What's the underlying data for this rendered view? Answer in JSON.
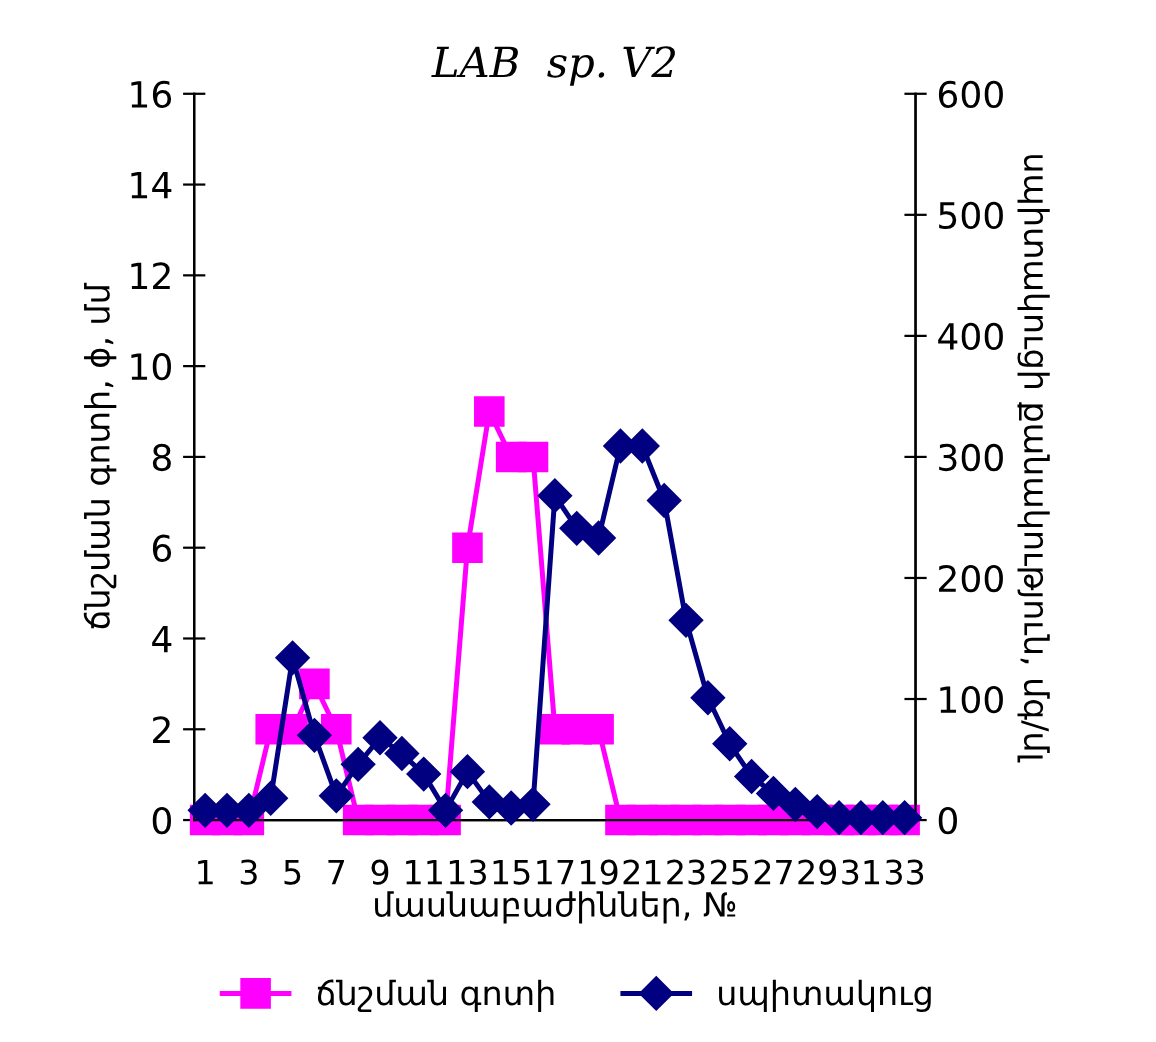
{
  "chart_data": {
    "type": "line",
    "title": "LAB  sp. V2",
    "xlabel": "մասնաբաժիններ, №",
    "ylabel": "ճնշման գոտի, ϕ, մմ",
    "y2label": "սպիտակուցի քանակություն, մգ/մլ",
    "categories": [
      "1",
      null,
      "3",
      null,
      "5",
      null,
      "7",
      null,
      "9",
      null,
      "11",
      null,
      "13",
      null,
      "15",
      null,
      "17",
      null,
      "19",
      null,
      "21",
      null,
      "23",
      null,
      "25",
      null,
      "27",
      null,
      "29",
      null,
      "31",
      null,
      "33"
    ],
    "series": [
      {
        "name": "ճնշման գոտի",
        "color": "#ff00ff",
        "marker": "square",
        "values": [
          0,
          0,
          0,
          2,
          2,
          3,
          2,
          0,
          0,
          0,
          0,
          0,
          6,
          9,
          8,
          8,
          2,
          2,
          2,
          0,
          0,
          0,
          0,
          0,
          0,
          0,
          0,
          0,
          0,
          0,
          0,
          0,
          0
        ]
      },
      {
        "name": "սպիտակուց",
        "color": "#000080",
        "marker": "diamond",
        "axis": "y2",
        "values": [
          8,
          8,
          8,
          18,
          134,
          70,
          20,
          46,
          68,
          55,
          38,
          8,
          40,
          15,
          10,
          13,
          268,
          241,
          233,
          309,
          309,
          264,
          165,
          101,
          63,
          36,
          22,
          13,
          7,
          2,
          2,
          2,
          2
        ]
      }
    ],
    "ylim": [
      0,
      16
    ],
    "yticks": [
      0,
      2,
      4,
      6,
      8,
      10,
      12,
      14,
      16
    ],
    "y2lim": [
      0,
      600
    ],
    "y2ticks": [
      0,
      100,
      200,
      300,
      400,
      500,
      600
    ],
    "grid": false,
    "legend": "bottom"
  }
}
